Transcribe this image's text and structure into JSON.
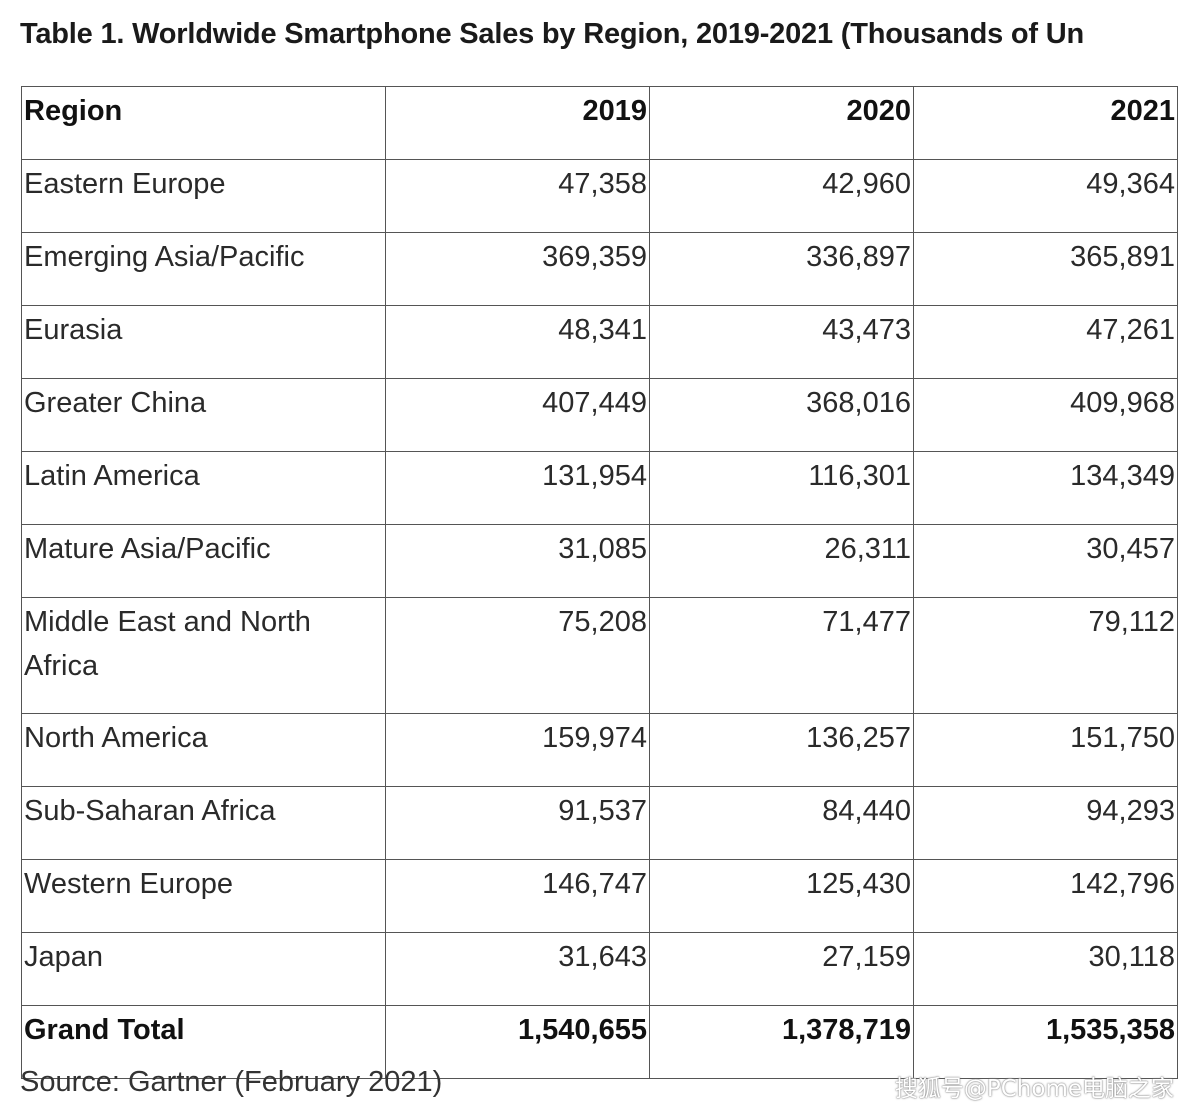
{
  "title": "Table 1. Worldwide Smartphone Sales by Region, 2019-2021 (Thousands of Un",
  "table": {
    "headers": [
      "Region",
      "2019",
      "2020",
      "2021"
    ],
    "rows": [
      [
        "Eastern Europe",
        "47,358",
        "42,960",
        "49,364"
      ],
      [
        "Emerging Asia/Pacific",
        "369,359",
        "336,897",
        "365,891"
      ],
      [
        "Eurasia",
        "48,341",
        "43,473",
        "47,261"
      ],
      [
        "Greater China",
        "407,449",
        "368,016",
        "409,968"
      ],
      [
        "Latin America",
        "131,954",
        "116,301",
        "134,349"
      ],
      [
        "Mature Asia/Pacific",
        "31,085",
        "26,311",
        "30,457"
      ],
      [
        "Middle East and North Africa",
        "75,208",
        "71,477",
        "79,112"
      ],
      [
        "North America",
        "159,974",
        "136,257",
        "151,750"
      ],
      [
        "Sub-Saharan Africa",
        "91,537",
        "84,440",
        "94,293"
      ],
      [
        "Western Europe",
        "146,747",
        "125,430",
        "142,796"
      ],
      [
        "Japan",
        "31,643",
        "27,159",
        "30,118"
      ]
    ],
    "total": [
      "Grand Total",
      "1,540,655",
      "1,378,719",
      "1,535,358"
    ]
  },
  "source": "Source: Gartner (February 2021)",
  "watermark": "搜狐号@PChome电脑之家"
}
